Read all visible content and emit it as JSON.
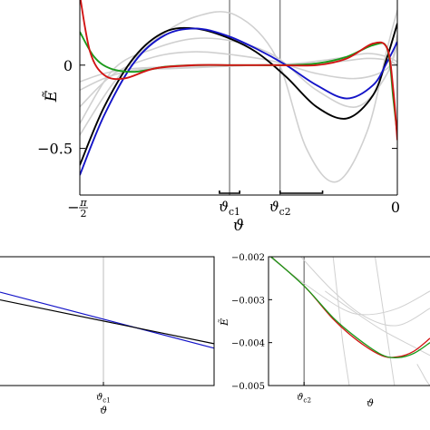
{
  "chart_data": [
    {
      "type": "line",
      "panel": "main",
      "xlabel": "ϑ",
      "ylabel": "Ẽ",
      "xlim": [
        -1.5708,
        0
      ],
      "ylim": [
        -0.78,
        0.5
      ],
      "x_ticks": [
        {
          "value": -1.5708,
          "label_main": "−",
          "label_num": "π",
          "label_den": "2"
        },
        {
          "value": 0,
          "label": "0"
        }
      ],
      "y_ticks": [
        {
          "value": 0.5,
          "label": "0.5"
        },
        {
          "value": 0,
          "label": "0"
        },
        {
          "value": -0.5,
          "label": "−0.5"
        }
      ],
      "vlines": [
        {
          "name": "theta-c1",
          "x": -0.83,
          "label": "ϑ",
          "sub": "c1",
          "bracket": [
            -0.88,
            -0.78
          ]
        },
        {
          "name": "theta-c2",
          "x": -0.58,
          "label": "ϑ",
          "sub": "c2",
          "bracket": [
            -0.58,
            -0.37
          ]
        }
      ],
      "series": [
        {
          "color": "#d0d0d0",
          "x": [
            -1.5708,
            -1.4,
            -1.2,
            -1.0,
            -0.8,
            -0.6,
            -0.45,
            -0.3,
            -0.15,
            -0.05,
            0
          ],
          "y": [
            -0.42,
            -0.1,
            0.15,
            0.29,
            0.3,
            0.05,
            -0.5,
            -0.7,
            -0.4,
            0.1,
            0.33
          ]
        },
        {
          "color": "#d0d0d0",
          "x": [
            -1.5708,
            -1.4,
            -1.2,
            -1.0,
            -0.8,
            -0.6,
            -0.4,
            -0.2,
            -0.05,
            0
          ],
          "y": [
            -0.35,
            -0.02,
            0.1,
            0.16,
            0.14,
            0.05,
            -0.15,
            -0.25,
            -0.05,
            0.18
          ]
        },
        {
          "color": "#d0d0d0",
          "x": [
            -1.5708,
            -1.4,
            -1.2,
            -1.0,
            -0.8,
            -0.6,
            -0.4,
            -0.2,
            -0.05,
            0
          ],
          "y": [
            -0.25,
            -0.05,
            0.05,
            0.08,
            0.06,
            0.02,
            -0.05,
            -0.08,
            -0.02,
            0.12
          ]
        },
        {
          "color": "#d0d0d0",
          "x": [
            -1.5708,
            -1.45,
            -1.3,
            -1.1,
            -0.9,
            -0.7,
            -0.5,
            -0.3,
            -0.15,
            -0.05,
            0
          ],
          "y": [
            -0.1,
            -0.05,
            -0.02,
            -0.01,
            -0.005,
            0.0,
            0.01,
            0.04,
            0.07,
            0.05,
            0.02
          ]
        },
        {
          "color": "#d0d0d0",
          "x": [
            -1.5708,
            -1.45,
            -1.3,
            -1.1,
            -0.9,
            -0.7,
            -0.5,
            -0.3,
            -0.15,
            -0.05,
            0
          ],
          "y": [
            -0.15,
            -0.08,
            -0.03,
            -0.02,
            -0.01,
            0.0,
            0.005,
            0.02,
            0.04,
            0.03,
            0.0
          ]
        },
        {
          "color": "#000000",
          "x": [
            -1.5708,
            -1.45,
            -1.3,
            -1.15,
            -1.0,
            -0.85,
            -0.7,
            -0.55,
            -0.4,
            -0.25,
            -0.12,
            -0.05,
            0
          ],
          "y": [
            -0.6,
            -0.25,
            0.05,
            0.2,
            0.22,
            0.17,
            0.08,
            -0.07,
            -0.25,
            -0.32,
            -0.18,
            0.05,
            0.25
          ]
        },
        {
          "color": "#1414c8",
          "x": [
            -1.5708,
            -1.45,
            -1.3,
            -1.15,
            -1.0,
            -0.85,
            -0.7,
            -0.55,
            -0.4,
            -0.25,
            -0.12,
            -0.05,
            0
          ],
          "y": [
            -0.66,
            -0.3,
            0.02,
            0.18,
            0.22,
            0.18,
            0.1,
            0.0,
            -0.12,
            -0.2,
            -0.12,
            0.02,
            0.14
          ]
        },
        {
          "color": "#1a9a1a",
          "x": [
            -1.5708,
            -1.5,
            -1.42,
            -1.3,
            -1.15,
            -1.0,
            -0.85,
            -0.7,
            -0.55,
            -0.4,
            -0.25,
            -0.12,
            -0.05,
            -0.02,
            0
          ],
          "y": [
            0.2,
            0.05,
            -0.02,
            -0.04,
            -0.01,
            0.0,
            0.0,
            0.0,
            0.0,
            0.01,
            0.05,
            0.12,
            0.1,
            -0.2,
            -0.42
          ]
        },
        {
          "color": "#d21414",
          "x": [
            -1.5708,
            -1.52,
            -1.45,
            -1.35,
            -1.2,
            -1.0,
            -0.8,
            -0.6,
            -0.4,
            -0.25,
            -0.12,
            -0.05,
            -0.02,
            0
          ],
          "y": [
            0.42,
            0.08,
            -0.06,
            -0.08,
            -0.02,
            0.0,
            0.0,
            0.0,
            0.0,
            0.04,
            0.13,
            0.1,
            -0.15,
            -0.45
          ]
        }
      ]
    },
    {
      "type": "line",
      "panel": "inset-left",
      "xlabel": "ϑ",
      "vlines": [
        {
          "x": 0,
          "label": "ϑ",
          "sub": "c1"
        }
      ],
      "xlim": [
        -1,
        1
      ],
      "ylim": [
        -1,
        1
      ],
      "series": [
        {
          "color": "#1414c8",
          "x": [
            -1,
            1
          ],
          "y": [
            0.45,
            -0.42
          ]
        },
        {
          "color": "#000000",
          "x": [
            -1,
            1
          ],
          "y": [
            0.33,
            -0.35
          ]
        }
      ]
    },
    {
      "type": "line",
      "panel": "inset-right",
      "xlabel": "ϑ",
      "ylabel": "Ẽ",
      "xlim": [
        0,
        1
      ],
      "ylim": [
        -0.005,
        -0.002
      ],
      "y_ticks": [
        {
          "value": -0.002,
          "label": "−0.002"
        },
        {
          "value": -0.003,
          "label": "−0.003"
        },
        {
          "value": -0.004,
          "label": "−0.004"
        },
        {
          "value": -0.005,
          "label": "−0.005"
        }
      ],
      "vlines": [
        {
          "x": 0.22,
          "label": "ϑ",
          "sub": "c2"
        }
      ],
      "series": [
        {
          "color": "#d0d0d0",
          "x": [
            0.0,
            0.22,
            0.45,
            0.6,
            0.8,
            1.0
          ],
          "y": [
            -0.00198,
            -0.00262,
            -0.0032,
            -0.00335,
            -0.0032,
            -0.0028
          ]
        },
        {
          "color": "#d0d0d0",
          "x": [
            0.2,
            0.4,
            0.6,
            0.8,
            1.0
          ],
          "y": [
            -0.002,
            -0.0028,
            -0.0034,
            -0.0036,
            -0.0032
          ]
        },
        {
          "color": "#d0d0d0",
          "x": [
            0.35,
            0.5,
            0.7,
            0.9,
            1.0
          ],
          "y": [
            -0.0028,
            -0.0032,
            -0.0037,
            -0.0041,
            -0.0043
          ]
        },
        {
          "color": "#d0d0d0",
          "x": [
            0.4,
            0.43,
            0.46,
            0.5
          ],
          "y": [
            -0.002,
            -0.003,
            -0.004,
            -0.005
          ]
        },
        {
          "color": "#d0d0d0",
          "x": [
            0.66,
            0.7,
            0.74,
            0.78
          ],
          "y": [
            -0.002,
            -0.003,
            -0.004,
            -0.005
          ]
        },
        {
          "color": "#d0d0d0",
          "x": [
            0.92,
            0.95,
            0.98,
            1.0
          ],
          "y": [
            -0.0045,
            -0.0047,
            -0.0049,
            -0.005
          ]
        },
        {
          "color": "#d21414",
          "x": [
            0.0,
            0.22,
            0.4,
            0.55,
            0.7,
            0.8,
            0.9,
            1.0
          ],
          "y": [
            -0.00195,
            -0.00268,
            -0.00345,
            -0.00395,
            -0.0043,
            -0.00433,
            -0.0042,
            -0.0039
          ]
        },
        {
          "color": "#1a9a1a",
          "x": [
            0.0,
            0.22,
            0.4,
            0.55,
            0.7,
            0.8,
            0.9,
            1.0
          ],
          "y": [
            -0.00195,
            -0.00268,
            -0.00342,
            -0.0039,
            -0.00428,
            -0.00435,
            -0.00425,
            -0.004
          ]
        }
      ]
    }
  ]
}
